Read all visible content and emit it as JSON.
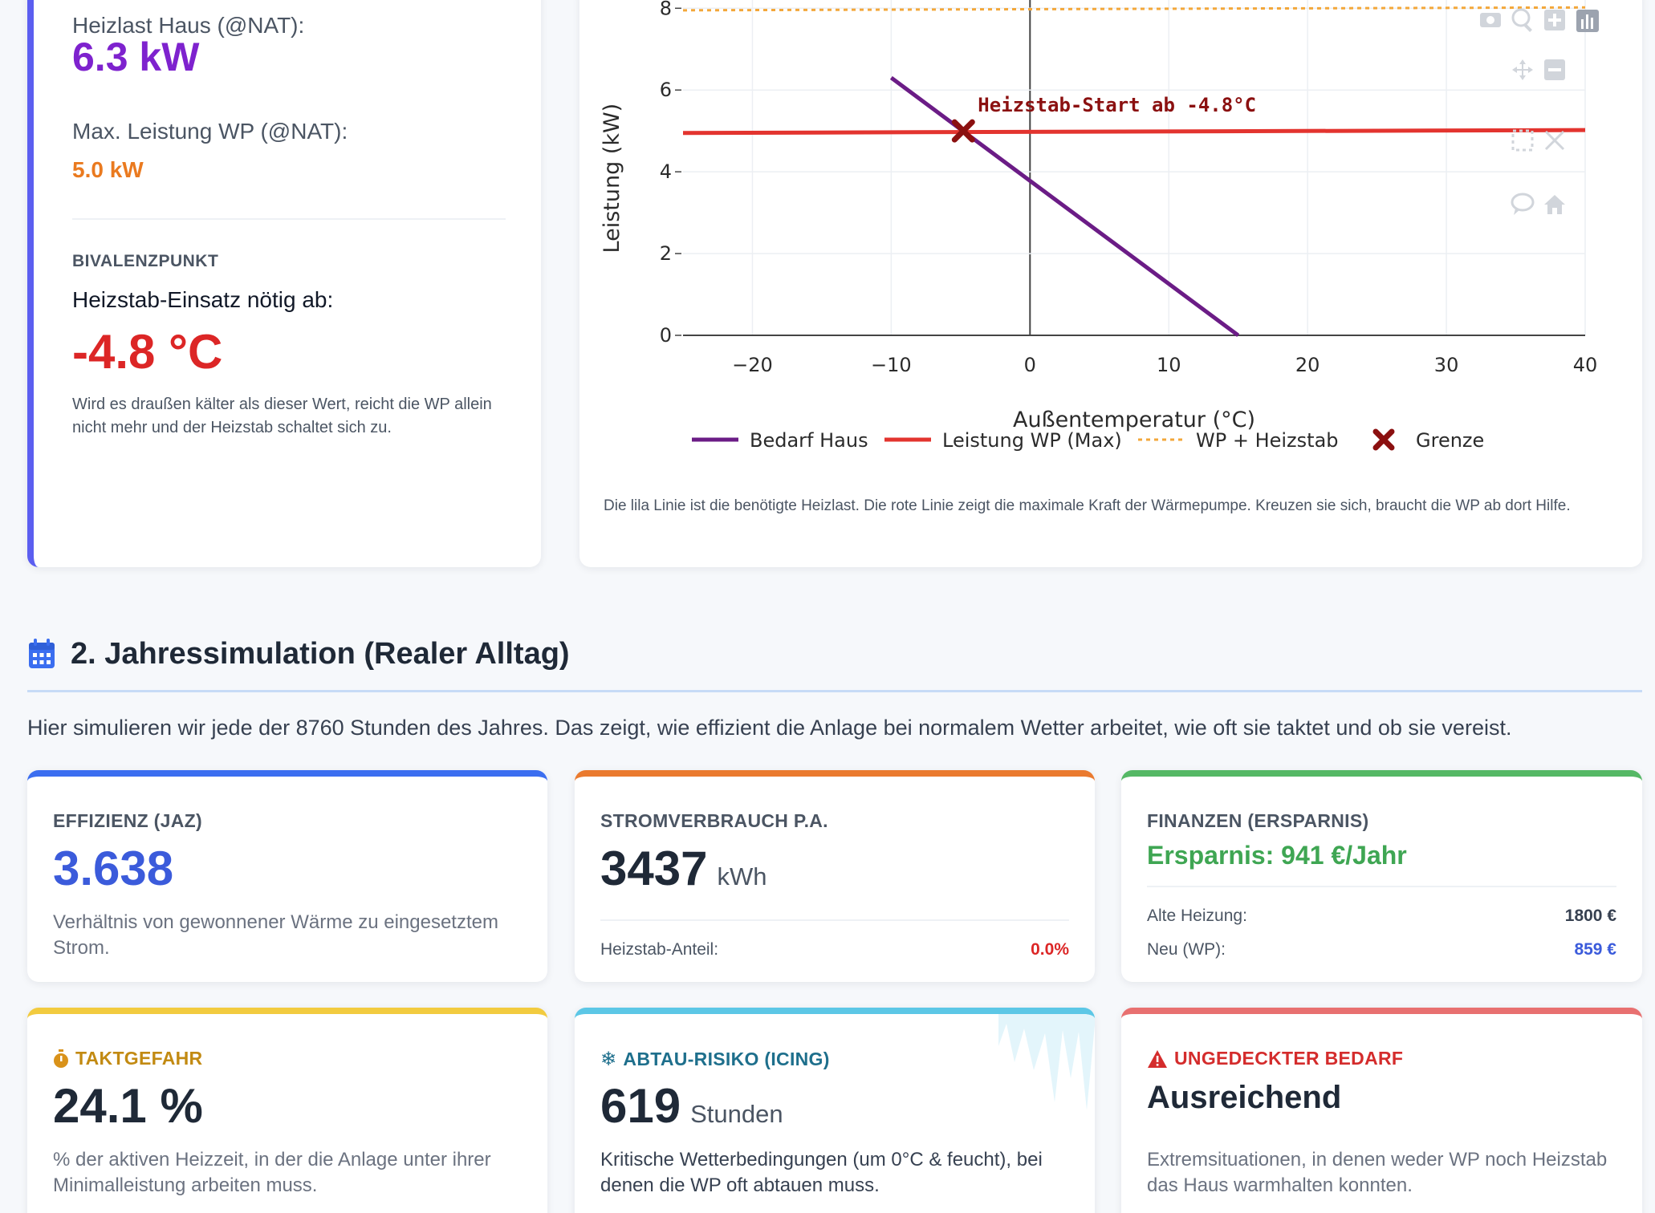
{
  "left_card": {
    "heizlast_label": "Heizlast Haus (@NAT):",
    "heizlast_value": "6.3 kW",
    "max_wp_label": "Max. Leistung WP (@NAT):",
    "max_wp_value": "5.0 kW",
    "bivalenz_title": "BIVALENZPUNKT",
    "bivalenz_question": "Heizstab-Einsatz nötig ab:",
    "bivalenz_value": "-4.8 °C",
    "bivalenz_desc": "Wird es draußen kälter als dieser Wert, reicht die WP allein nicht mehr und der Heizstab schaltet sich zu."
  },
  "chart_data": {
    "type": "line",
    "xlabel": "Außentemperatur (°C)",
    "ylabel": "Leistung (kW)",
    "xlim": [
      -25,
      40
    ],
    "ylim": [
      0,
      8.3
    ],
    "x_ticks": [
      -20,
      -10,
      0,
      10,
      20,
      30,
      40
    ],
    "x_tick_labels": [
      "−20",
      "−10",
      "0",
      "10",
      "20",
      "30",
      "40"
    ],
    "y_ticks": [
      0,
      2,
      4,
      6,
      8
    ],
    "y_tick_labels": [
      "0",
      "2",
      "4",
      "6",
      "8"
    ],
    "series": [
      {
        "name": "Bedarf Haus",
        "color": "#6b1c86",
        "style": "solid",
        "x": [
          -10,
          15
        ],
        "y": [
          6.3,
          0
        ]
      },
      {
        "name": "Leistung WP (Max)",
        "color": "#e3342f",
        "style": "solid",
        "x": [
          -25,
          40
        ],
        "y": [
          4.95,
          5.02
        ]
      },
      {
        "name": "WP + Heizstab",
        "color": "#f3a73a",
        "style": "dotted",
        "x": [
          -25,
          40
        ],
        "y": [
          7.95,
          8.02
        ]
      },
      {
        "name": "Grenze",
        "color": "#8b1010",
        "style": "marker",
        "x": [
          -4.8
        ],
        "y": [
          5.0
        ]
      }
    ],
    "annotation": {
      "text": "Heizstab-Start ab -4.8°C",
      "x": -4.8,
      "y": 5.0,
      "color": "#8b1010"
    },
    "legend": [
      "Bedarf Haus",
      "Leistung WP (Max)",
      "WP + Heizstab",
      "Grenze"
    ],
    "legend_position": "bottom"
  },
  "chart_note": "Die lila Linie ist die benötigte Heizlast. Die rote Linie zeigt die maximale Kraft der Wärmepumpe. Kreuzen sie sich, braucht die WP ab dort Hilfe.",
  "section": {
    "title": "2. Jahressimulation (Realer Alltag)",
    "intro": "Hier simulieren wir jede der 8760 Stunden des Jahres. Das zeigt, wie effizient die Anlage bei normalem Wetter arbeitet, wie oft sie taktet und ob sie vereist."
  },
  "cards": {
    "effizienz": {
      "title": "EFFIZIENZ (JAZ)",
      "value": "3.638",
      "desc": "Verhältnis von gewonnener Wärme zu eingesetztem Strom.",
      "color": "#3b5bdb"
    },
    "strom": {
      "title": "STROMVERBRAUCH P.A.",
      "value": "3437",
      "unit": "kWh",
      "heizstab_label": "Heizstab-Anteil:",
      "heizstab_value": "0.0%"
    },
    "finanzen": {
      "title": "FINANZEN (ERSPARNIS)",
      "savings": "Ersparnis: 941 €/Jahr",
      "alt_label": "Alte Heizung:",
      "alt_value": "1800 €",
      "neu_label": "Neu (WP):",
      "neu_value": "859 €"
    },
    "takt": {
      "title": "TAKTGEFAHR",
      "value": "24.1 %",
      "desc": "% der aktiven Heizzeit, in der die Anlage unter ihrer Minimalleistung arbeiten muss."
    },
    "abtau": {
      "title": "ABTAU-RISIKO (ICING)",
      "value": "619",
      "unit": "Stunden",
      "desc": "Kritische Wetterbedingungen (um 0°C & feucht), bei denen die WP oft abtauen muss."
    },
    "bedarf": {
      "title": "UNGEDECKTER BEDARF",
      "value": "Ausreichend",
      "desc": "Extremsituationen, in denen weder WP noch Heizstab das Haus warmhalten konnten."
    }
  }
}
